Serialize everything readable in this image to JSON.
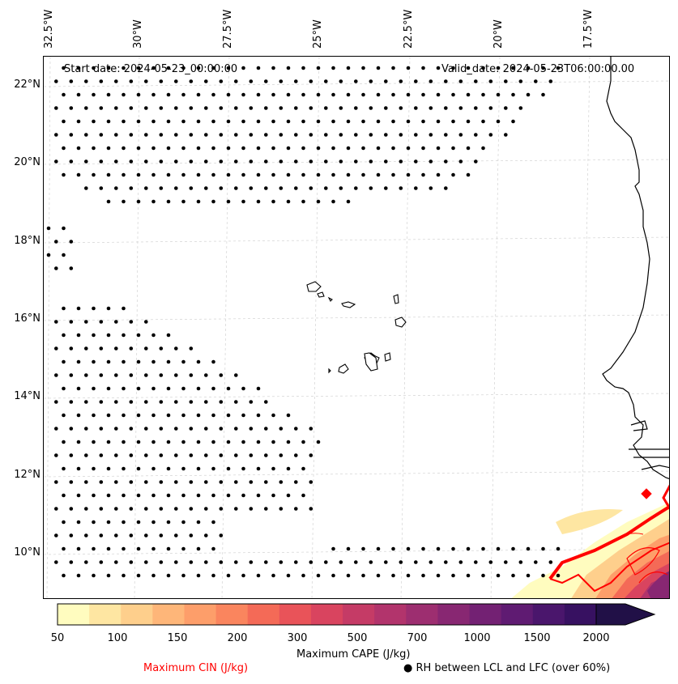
{
  "map": {
    "start_date": "Start date: 2024-05-23_00:00:00",
    "valid_date": "Valid_date: 2024-05-23T06:00:00.00",
    "lon_labels": [
      "32.5°W",
      "30°W",
      "27.5°W",
      "25°W",
      "22.5°W",
      "20°W",
      "17.5°W"
    ],
    "lat_labels": [
      "22°N",
      "20°N",
      "18°N",
      "16°N",
      "14°N",
      "12°N",
      "10°N"
    ],
    "colors": {
      "cin_contour": "#ff0000",
      "coastline": "#000000",
      "dots": "#000000",
      "gridline": "#cccccc"
    }
  },
  "colorbar": {
    "label": "Maximum CAPE (J/kg)",
    "ticks": [
      "50",
      "100",
      "150",
      "200",
      "300",
      "500",
      "700",
      "1000",
      "1500",
      "2000"
    ],
    "colors": [
      "#fffcbf",
      "#fee6a2",
      "#fecf8c",
      "#feb679",
      "#fd9e6a",
      "#fa855e",
      "#f46a57",
      "#e95359",
      "#d9445f",
      "#c53b66",
      "#b2346c",
      "#9d2e70",
      "#882772",
      "#732173",
      "#5f1b72",
      "#4a166c",
      "#371161",
      "#211047"
    ]
  },
  "legend": {
    "cin_label": "Maximum CIN (J/kg)",
    "rh_label": "RH between LCL and LFC (over 60%)",
    "rh_marker": "●"
  }
}
